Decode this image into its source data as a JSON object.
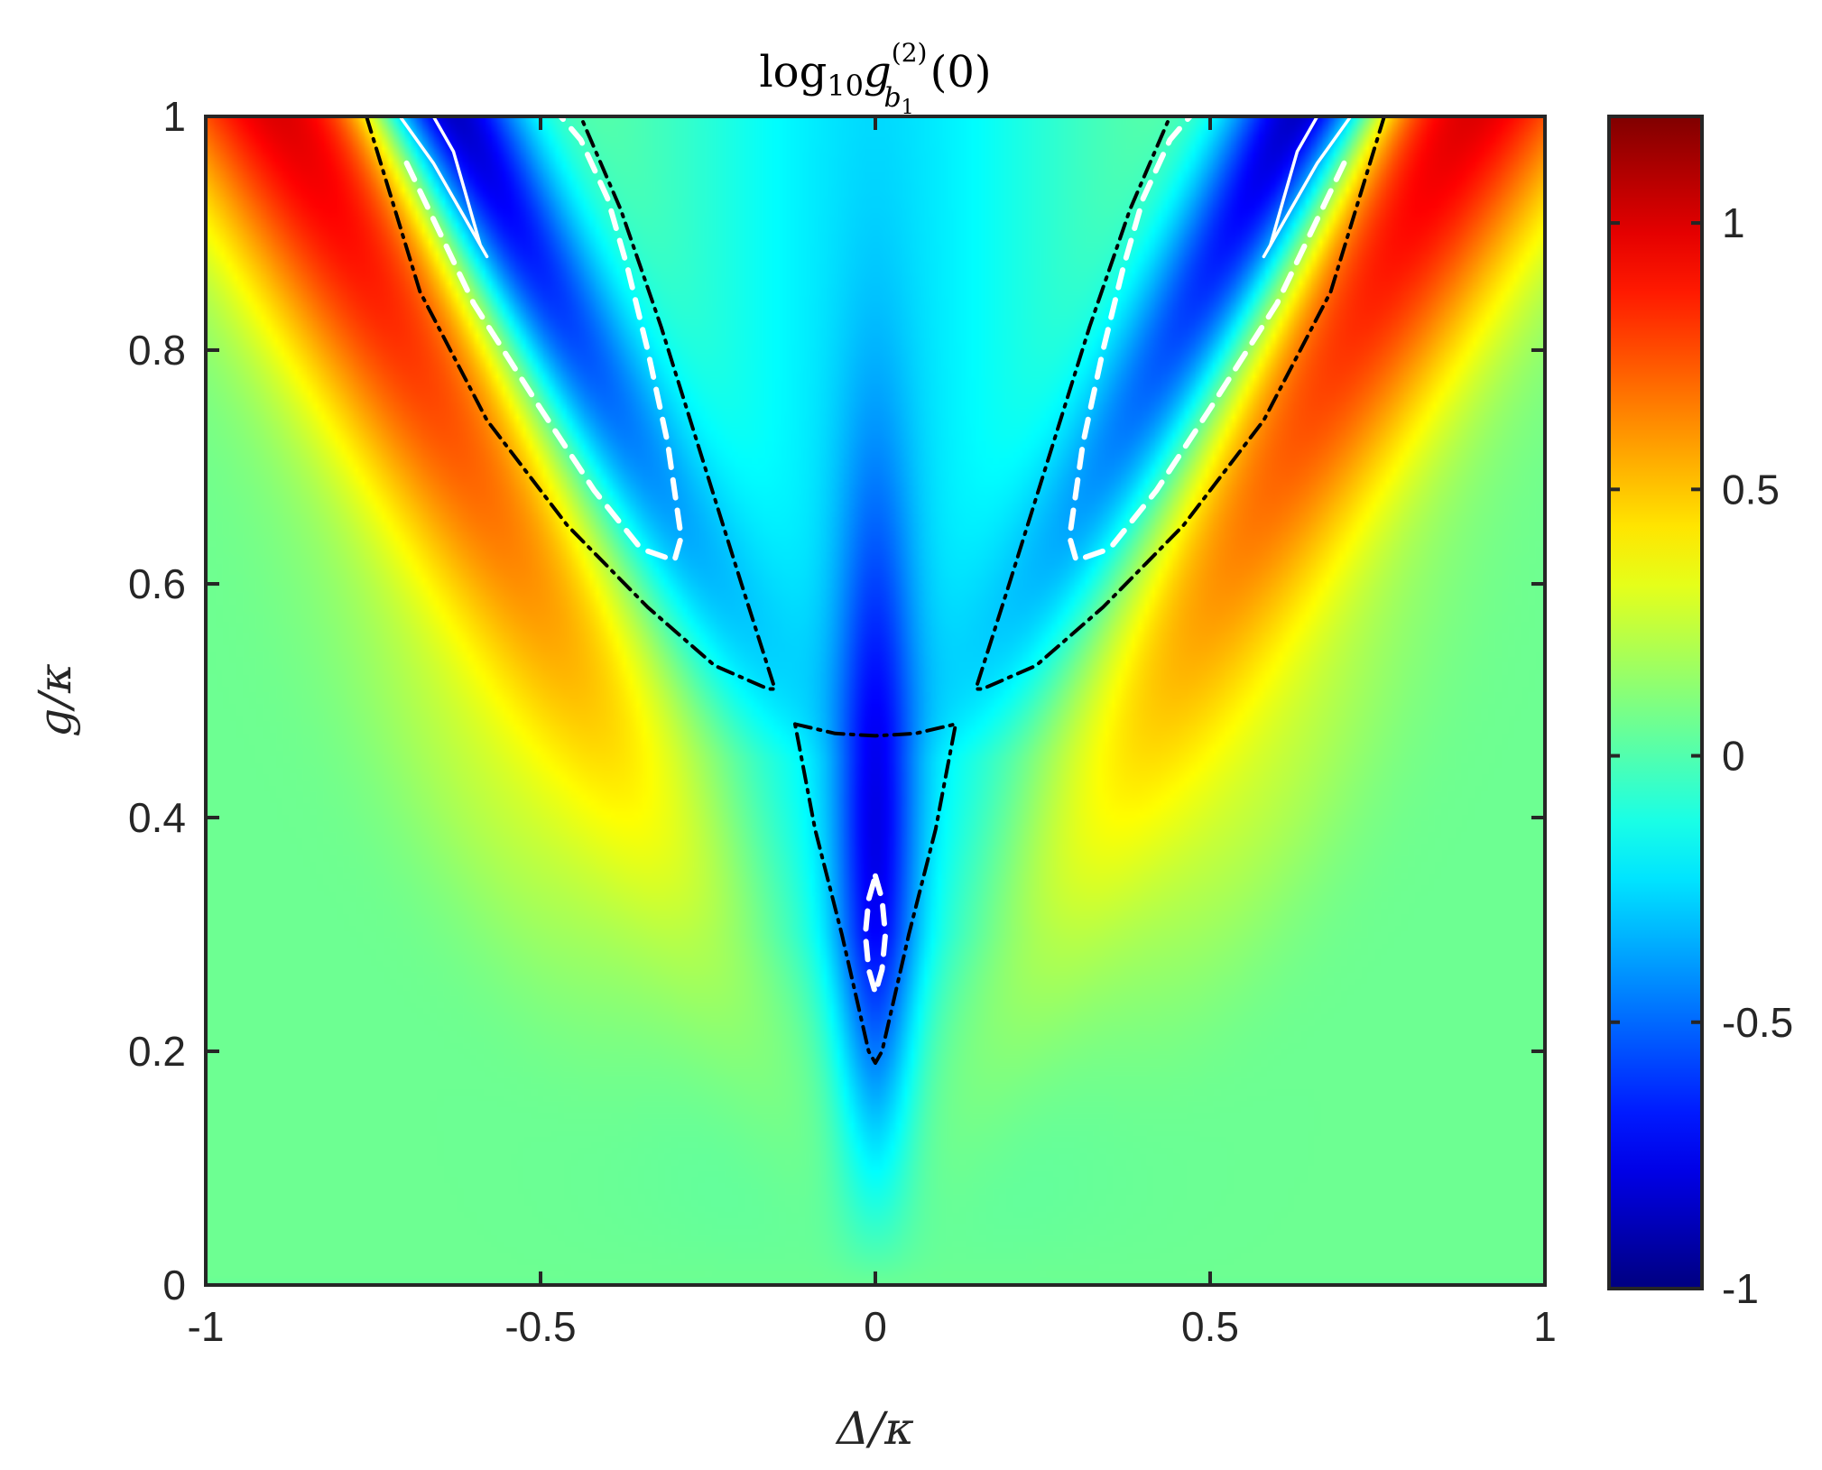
{
  "chart_data": {
    "type": "heatmap",
    "title": "log₁₀g_b₁^(2)(0)",
    "title_parts": {
      "fn": "log",
      "base": "10",
      "var": "g",
      "sub": "b",
      "subsub": "1",
      "sup": "(2)",
      "arg": "(0)"
    },
    "xlabel": "Δ/κ",
    "ylabel": "g/κ",
    "xlim": [
      -1,
      1
    ],
    "ylim": [
      0,
      1
    ],
    "colormap": "jet",
    "clim": [
      -1,
      1.2
    ],
    "x_ticks": [
      -1,
      -0.5,
      0,
      0.5,
      1
    ],
    "x_tick_labels": [
      "-1",
      "-0.5",
      "0",
      "0.5",
      "1"
    ],
    "y_ticks": [
      0,
      0.2,
      0.4,
      0.6,
      0.8,
      1
    ],
    "y_tick_labels": [
      "0",
      "0.2",
      "0.4",
      "0.6",
      "0.8",
      "1"
    ],
    "colorbar_ticks": [
      -1,
      -0.5,
      0,
      0.5,
      1
    ],
    "colorbar_tick_labels": [
      "-1",
      "-0.5",
      "0",
      "0.5",
      "1"
    ],
    "contours": [
      {
        "style": "dash-dot",
        "color": "#000000",
        "x": [
          -0.76,
          -0.68,
          -0.58,
          -0.46,
          -0.34,
          -0.24,
          -0.16,
          -0.15,
          -0.2,
          -0.26,
          -0.32,
          -0.38,
          -0.44
        ],
        "y": [
          1.0,
          0.85,
          0.74,
          0.65,
          0.58,
          0.53,
          0.51,
          0.51,
          0.6,
          0.71,
          0.82,
          0.92,
          1.0
        ]
      },
      {
        "style": "dash-dot",
        "color": "#000000",
        "x": [
          0.76,
          0.68,
          0.58,
          0.46,
          0.34,
          0.24,
          0.16,
          0.15,
          0.2,
          0.26,
          0.32,
          0.38,
          0.44
        ],
        "y": [
          1.0,
          0.85,
          0.74,
          0.65,
          0.58,
          0.53,
          0.51,
          0.51,
          0.6,
          0.71,
          0.82,
          0.92,
          1.0
        ]
      },
      {
        "style": "dash-dot",
        "color": "#000000",
        "x": [
          -0.12,
          -0.06,
          0,
          0.06,
          0.12,
          0.09,
          0.05,
          0.01,
          0,
          -0.01,
          -0.05,
          -0.09,
          -0.12
        ],
        "y": [
          0.48,
          0.472,
          0.47,
          0.472,
          0.48,
          0.39,
          0.3,
          0.2,
          0.19,
          0.2,
          0.3,
          0.39,
          0.48
        ]
      },
      {
        "style": "dashed",
        "color": "#ffffff",
        "x": [
          -0.7,
          -0.6,
          -0.5,
          -0.42,
          -0.35,
          -0.3,
          -0.29,
          -0.31,
          -0.34,
          -0.37,
          -0.4,
          -0.44,
          -0.47
        ],
        "y": [
          0.96,
          0.84,
          0.75,
          0.68,
          0.63,
          0.62,
          0.64,
          0.72,
          0.8,
          0.87,
          0.93,
          0.98,
          1.0
        ]
      },
      {
        "style": "dashed",
        "color": "#ffffff",
        "x": [
          0.7,
          0.6,
          0.5,
          0.42,
          0.35,
          0.3,
          0.29,
          0.31,
          0.34,
          0.37,
          0.4,
          0.44,
          0.47
        ],
        "y": [
          0.96,
          0.84,
          0.75,
          0.68,
          0.63,
          0.62,
          0.64,
          0.72,
          0.8,
          0.87,
          0.93,
          0.98,
          1.0
        ]
      },
      {
        "style": "dashed",
        "color": "#ffffff",
        "x": [
          0,
          0.01,
          0.015,
          0.01,
          0,
          -0.01,
          -0.015,
          -0.01,
          0
        ],
        "y": [
          0.35,
          0.33,
          0.3,
          0.27,
          0.25,
          0.27,
          0.3,
          0.33,
          0.35
        ]
      },
      {
        "style": "solid",
        "color": "#ffffff",
        "x": [
          -0.71,
          -0.66,
          -0.62,
          -0.59,
          -0.58,
          -0.59,
          -0.61,
          -0.63,
          -0.66
        ],
        "y": [
          1.0,
          0.96,
          0.92,
          0.89,
          0.88,
          0.89,
          0.93,
          0.97,
          1.0
        ]
      },
      {
        "style": "solid",
        "color": "#ffffff",
        "x": [
          0.71,
          0.66,
          0.62,
          0.59,
          0.58,
          0.59,
          0.61,
          0.63,
          0.66
        ],
        "y": [
          1.0,
          0.96,
          0.92,
          0.89,
          0.88,
          0.89,
          0.93,
          0.97,
          1.0
        ]
      }
    ]
  }
}
